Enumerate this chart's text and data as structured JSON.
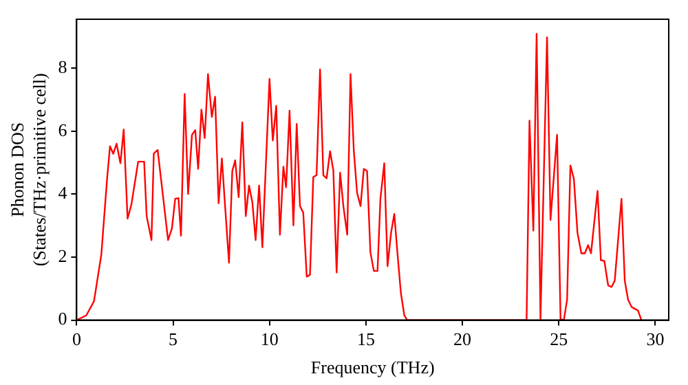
{
  "chart_data": {
    "type": "line",
    "xlabel": "Frequency (THz)",
    "ylabel": "Phonon DOS\n(States/THz·primitive cell)",
    "xlim": [
      0,
      30.7
    ],
    "ylim": [
      0,
      9.55
    ],
    "xticks": [
      0,
      5,
      10,
      15,
      20,
      25,
      30
    ],
    "yticks": [
      0,
      2,
      4,
      6,
      8
    ],
    "grid": false,
    "legend": false,
    "marker": "none",
    "line_style": "solid",
    "series": [
      {
        "color": "#ff0000",
        "x": [
          0,
          0.5,
          0.9,
          1.28,
          1.58,
          1.73,
          1.9,
          2.07,
          2.27,
          2.44,
          2.64,
          2.84,
          3.19,
          3.5,
          3.63,
          3.88,
          4.0,
          4.2,
          4.5,
          4.74,
          4.94,
          5.11,
          5.28,
          5.41,
          5.6,
          5.78,
          5.98,
          6.15,
          6.3,
          6.47,
          6.64,
          6.81,
          7.01,
          7.18,
          7.36,
          7.53,
          7.7,
          7.9,
          8.07,
          8.22,
          8.4,
          8.59,
          8.77,
          8.94,
          9.11,
          9.28,
          9.46,
          9.63,
          10.0,
          10.17,
          10.35,
          10.54,
          10.72,
          10.86,
          11.04,
          11.24,
          11.41,
          11.58,
          11.75,
          11.93,
          12.1,
          12.27,
          12.44,
          12.62,
          12.79,
          12.96,
          13.14,
          13.31,
          13.48,
          13.66,
          13.83,
          14.03,
          14.2,
          14.37,
          14.54,
          14.72,
          14.89,
          15.06,
          15.23,
          15.41,
          15.6,
          15.75,
          15.95,
          16.12,
          16.3,
          16.47,
          16.64,
          16.81,
          16.99,
          17.14,
          23.33,
          23.48,
          23.68,
          23.85,
          24.05,
          24.39,
          24.57,
          24.91,
          25.09,
          25.26,
          25.43,
          25.6,
          25.78,
          25.97,
          26.17,
          26.35,
          26.52,
          26.67,
          27.01,
          27.18,
          27.36,
          27.56,
          27.73,
          27.9,
          28.25,
          28.42,
          28.59,
          28.77,
          29.11,
          29.28
        ],
        "values": [
          0,
          0.15,
          0.6,
          2.08,
          4.5,
          5.52,
          5.28,
          5.6,
          4.98,
          6.05,
          3.22,
          3.67,
          5.03,
          5.03,
          3.3,
          2.54,
          5.29,
          5.4,
          3.82,
          2.54,
          2.91,
          3.85,
          3.87,
          2.68,
          7.18,
          4.0,
          5.88,
          6.03,
          4.8,
          6.68,
          5.78,
          7.81,
          6.45,
          7.09,
          3.71,
          5.13,
          3.59,
          1.82,
          4.73,
          5.07,
          3.9,
          6.28,
          3.3,
          4.27,
          3.74,
          2.54,
          4.27,
          2.31,
          7.66,
          5.7,
          6.8,
          2.71,
          4.87,
          4.22,
          6.65,
          3.01,
          6.23,
          3.62,
          3.41,
          1.38,
          1.44,
          4.54,
          4.6,
          7.96,
          4.6,
          4.5,
          5.36,
          4.75,
          1.51,
          4.68,
          3.62,
          2.71,
          7.81,
          5.39,
          4.04,
          3.62,
          4.8,
          4.73,
          2.16,
          1.56,
          1.56,
          3.85,
          4.98,
          1.71,
          2.76,
          3.37,
          2.08,
          0.87,
          0.15,
          0,
          0,
          6.33,
          2.84,
          9.09,
          0.03,
          8.98,
          3.18,
          5.88,
          0.03,
          0,
          0.65,
          4.91,
          4.49,
          2.76,
          2.12,
          2.12,
          2.38,
          2.12,
          4.1,
          1.9,
          1.88,
          1.1,
          1.05,
          1.25,
          3.85,
          1.25,
          0.65,
          0.42,
          0.3,
          0
        ]
      }
    ]
  }
}
